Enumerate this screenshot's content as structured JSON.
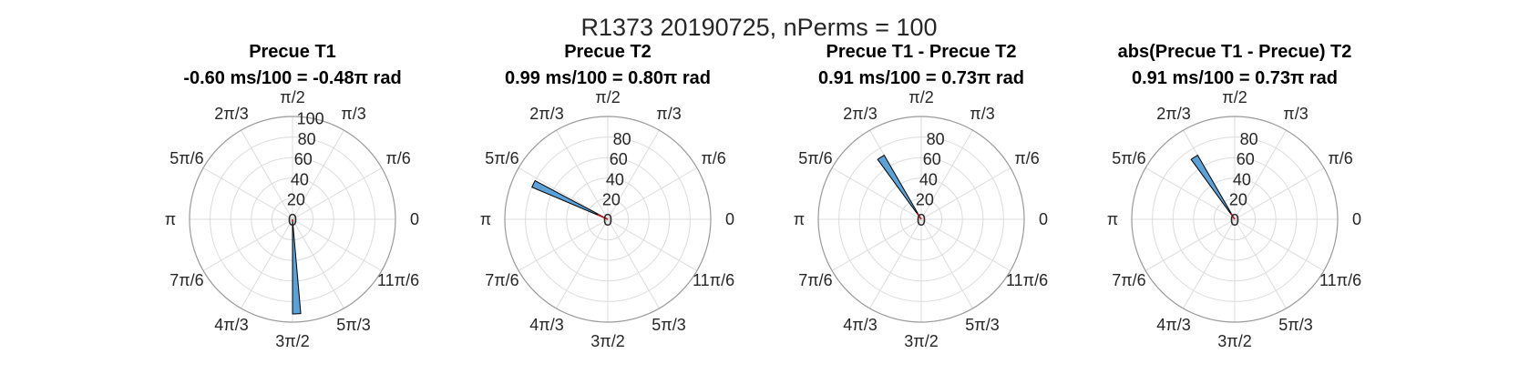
{
  "figure": {
    "suptitle": "R1373 20190725, nPerms = 100"
  },
  "theta_tick_labels": [
    "0",
    "π/6",
    "π/3",
    "π/2",
    "2π/3",
    "5π/6",
    "π",
    "7π/6",
    "4π/3",
    "3π/2",
    "5π/3",
    "11π/6"
  ],
  "colors": {
    "bar_fill": "#5aa2d8",
    "bar_edge": "#000000",
    "vector": "#c0141e",
    "grid": "#dcdcdc",
    "outer_ring": "#9a9a9a"
  },
  "chart_data": [
    {
      "type": "polar-histogram",
      "title_line1": "Precue T1",
      "title_line2": "-0.60 ms/100 = -0.48π rad",
      "rlim": [
        0,
        100
      ],
      "r_ticks": [
        0,
        20,
        40,
        60,
        80,
        100
      ],
      "bars": [
        {
          "theta_start_deg": 270,
          "theta_end_deg": 275,
          "count": 92
        }
      ],
      "mean_vector": {
        "angle_deg": 273,
        "length": 2
      }
    },
    {
      "type": "polar-histogram",
      "title_line1": "Precue T2",
      "title_line2": "0.99 ms/100 = 0.80π rad",
      "rlim": [
        0,
        100
      ],
      "r_ticks": [
        0,
        20,
        40,
        60,
        80
      ],
      "bars": [
        {
          "theta_start_deg": 152,
          "theta_end_deg": 157,
          "count": 80
        }
      ],
      "mean_vector": {
        "angle_deg": 155,
        "length": 11
      }
    },
    {
      "type": "polar-histogram",
      "title_line1": "Precue T1 - Precue T2",
      "title_line2": "0.91 ms/100 = 0.73π rad",
      "rlim": [
        0,
        100
      ],
      "r_ticks": [
        0,
        20,
        40,
        60,
        80
      ],
      "bars": [
        {
          "theta_start_deg": 120,
          "theta_end_deg": 126,
          "count": 72
        }
      ],
      "mean_vector": {
        "angle_deg": 123,
        "length": 7
      }
    },
    {
      "type": "polar-histogram",
      "title_line1": "abs(Precue T1 - Precue) T2",
      "title_line2": "0.91 ms/100 = 0.73π rad",
      "rlim": [
        0,
        100
      ],
      "r_ticks": [
        0,
        20,
        40,
        60,
        80
      ],
      "bars": [
        {
          "theta_start_deg": 120,
          "theta_end_deg": 126,
          "count": 72
        }
      ],
      "mean_vector": {
        "angle_deg": 123,
        "length": 7
      }
    }
  ]
}
